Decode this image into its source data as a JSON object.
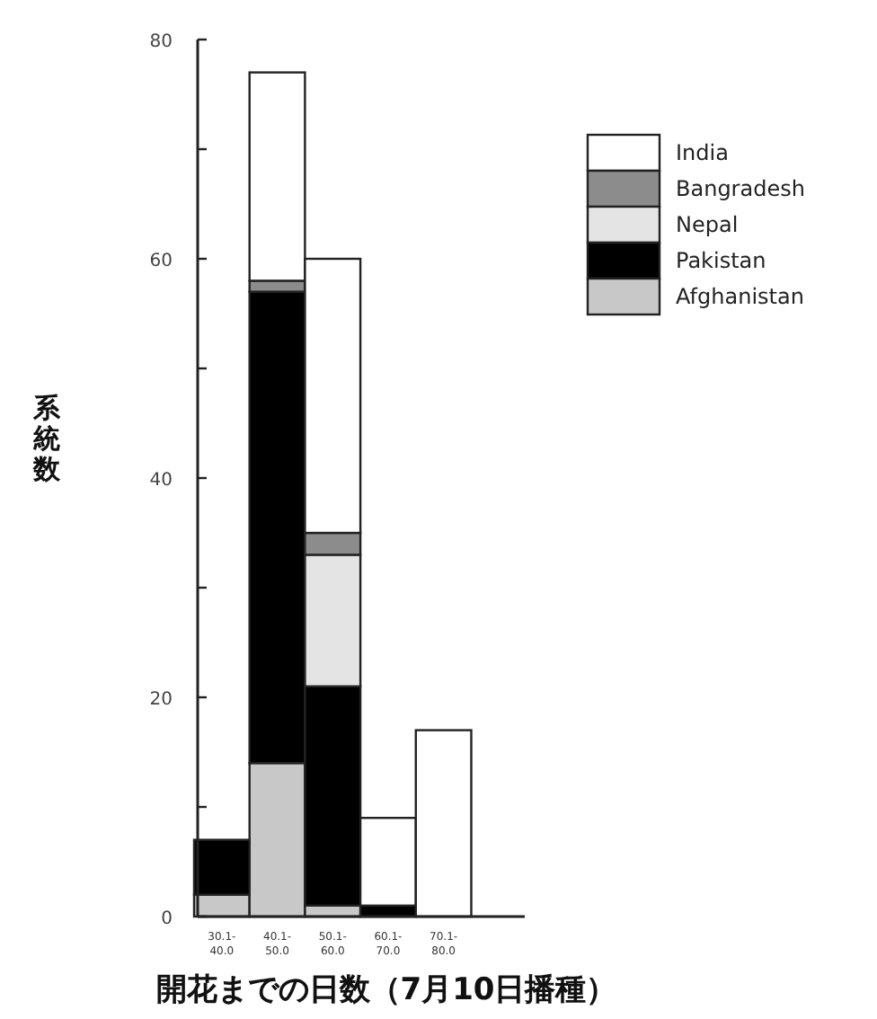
{
  "chart_data": {
    "type": "bar",
    "stacked": true,
    "xlabel": "開花までの日数（7月10日播種）",
    "ylabel": "系統数",
    "categories": [
      "30.1-40.0",
      "40.1-50.0",
      "50.1-60.0",
      "60.1-70.0",
      "70.1-80.0"
    ],
    "series": [
      {
        "name": "Afghanistan",
        "color": "#c8c8c8",
        "values": [
          2,
          14,
          1,
          0,
          0
        ]
      },
      {
        "name": "Pakistan",
        "color": "#000000",
        "values": [
          5,
          43,
          20,
          1,
          0
        ]
      },
      {
        "name": "Nepal",
        "color": "#e4e4e4",
        "values": [
          0,
          0,
          12,
          0,
          0
        ]
      },
      {
        "name": "Bangradesh",
        "color": "#8c8c8c",
        "values": [
          0,
          1,
          2,
          0,
          0
        ]
      },
      {
        "name": "India",
        "color": "#ffffff",
        "values": [
          0,
          19,
          25,
          8,
          17
        ]
      }
    ],
    "ylim": [
      0,
      80
    ],
    "yticks": [
      0,
      {
        "value": 10,
        "label": null
      },
      20,
      {
        "value": 30,
        "label": null
      },
      40,
      {
        "value": 50,
        "label": null
      },
      60,
      {
        "value": 70,
        "label": null
      },
      80
    ],
    "legend": "top right",
    "grid": false
  }
}
